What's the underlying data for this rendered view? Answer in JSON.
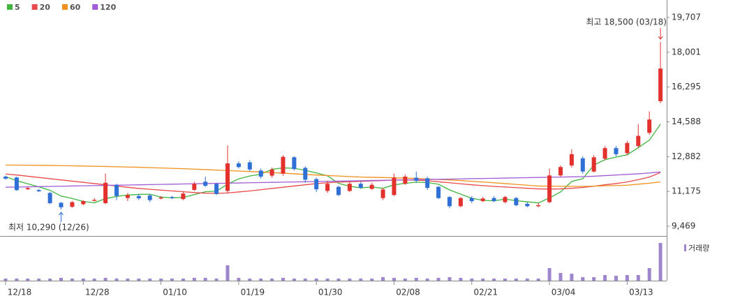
{
  "chart_data": {
    "type": "candlestick",
    "categories": [
      "12/18",
      null,
      null,
      null,
      null,
      null,
      null,
      "12/28",
      null,
      null,
      null,
      null,
      null,
      null,
      "01/10",
      null,
      null,
      null,
      null,
      null,
      null,
      "01/19",
      null,
      null,
      null,
      null,
      null,
      null,
      "01/30",
      null,
      null,
      null,
      null,
      null,
      null,
      "02/08",
      null,
      null,
      null,
      null,
      null,
      null,
      "02/21",
      null,
      null,
      null,
      null,
      null,
      null,
      "03/04",
      null,
      null,
      null,
      null,
      null,
      null,
      "03/13",
      null,
      null,
      null
    ],
    "open": [
      11900,
      11860,
      11280,
      11240,
      11100,
      10620,
      10420,
      10550,
      10720,
      10600,
      11500,
      10850,
      10950,
      10980,
      10830,
      10900,
      10800,
      11250,
      11650,
      11550,
      11200,
      12550,
      12600,
      12200,
      11950,
      12050,
      12850,
      12330,
      11780,
      11200,
      11400,
      11200,
      11550,
      11300,
      10850,
      11000,
      11550,
      11850,
      11820,
      11400,
      10900,
      10450,
      10850,
      10700,
      10850,
      10650,
      10850,
      10570,
      10450,
      10650,
      11960,
      12450,
      12800,
      12150,
      12780,
      13300,
      13050,
      13400,
      14050,
      15600
    ],
    "high": [
      11950,
      11900,
      11400,
      11300,
      11150,
      10650,
      10700,
      10750,
      10850,
      12050,
      11550,
      11100,
      11050,
      11050,
      10950,
      10950,
      11150,
      11650,
      11900,
      11600,
      13430,
      12650,
      12700,
      12300,
      12350,
      12950,
      12900,
      12400,
      11850,
      11700,
      11450,
      11650,
      11650,
      11600,
      11350,
      12050,
      12000,
      12150,
      11900,
      11450,
      10950,
      10900,
      10950,
      10900,
      10950,
      10950,
      10900,
      10650,
      10600,
      12300,
      12450,
      13250,
      12900,
      12950,
      13400,
      13400,
      13650,
      14470,
      15100,
      18500
    ],
    "low": [
      11750,
      11200,
      11250,
      11150,
      10550,
      10290,
      10380,
      10500,
      10700,
      10550,
      10750,
      10700,
      10750,
      10650,
      10780,
      10800,
      10750,
      11200,
      11400,
      11000,
      11100,
      12300,
      12150,
      11800,
      11850,
      11950,
      12200,
      11600,
      11150,
      11100,
      10950,
      11150,
      11300,
      11250,
      10750,
      10950,
      11500,
      11600,
      11250,
      10800,
      10350,
      10400,
      10600,
      10650,
      10650,
      10600,
      10450,
      10400,
      10400,
      10600,
      11900,
      12350,
      12050,
      12100,
      12700,
      12900,
      12950,
      13300,
      13950,
      15500
    ],
    "close": [
      11800,
      11240,
      11340,
      11180,
      10600,
      10400,
      10650,
      10700,
      10760,
      11600,
      10950,
      11000,
      10840,
      10750,
      10880,
      10850,
      11070,
      11550,
      11450,
      11050,
      12550,
      12370,
      12250,
      11900,
      12250,
      12870,
      12270,
      11750,
      11280,
      11550,
      11000,
      11550,
      11350,
      11500,
      11270,
      11850,
      11900,
      11700,
      11350,
      10850,
      10450,
      10850,
      10700,
      10830,
      10700,
      10900,
      10500,
      10450,
      10500,
      11960,
      12370,
      13000,
      12150,
      12850,
      13300,
      13000,
      13550,
      13900,
      14700,
      17200
    ],
    "up_color": "#e3312d",
    "down_color": "#2f6fd6",
    "series": [
      {
        "name": "5",
        "color": "#3fb53f",
        "values": [
          11900,
          11700,
          11550,
          11400,
          11230,
          10950,
          10830,
          10680,
          10620,
          10820,
          10930,
          11000,
          11030,
          11040,
          10900,
          10860,
          10880,
          11020,
          11160,
          11190,
          11530,
          11790,
          11930,
          12020,
          12260,
          12330,
          12310,
          12210,
          12080,
          11940,
          11570,
          11430,
          11350,
          11390,
          11330,
          11500,
          11570,
          11630,
          11610,
          11530,
          11250,
          11040,
          10840,
          10740,
          10710,
          10800,
          10720,
          10670,
          10610,
          10860,
          11150,
          11660,
          11800,
          12470,
          12730,
          12860,
          12970,
          13320,
          13690,
          14470
        ]
      },
      {
        "name": "20",
        "color": "#e84a4a",
        "values": [
          12030,
          11980,
          11920,
          11860,
          11800,
          11740,
          11680,
          11620,
          11560,
          11500,
          11440,
          11380,
          11320,
          11280,
          11240,
          11200,
          11160,
          11120,
          11090,
          11080,
          11100,
          11150,
          11200,
          11260,
          11320,
          11380,
          11440,
          11500,
          11560,
          11600,
          11630,
          11650,
          11670,
          11690,
          11710,
          11730,
          11740,
          11730,
          11700,
          11650,
          11600,
          11550,
          11500,
          11460,
          11420,
          11390,
          11360,
          11330,
          11300,
          11290,
          11300,
          11330,
          11370,
          11430,
          11500,
          11560,
          11640,
          11750,
          11880,
          12100
        ]
      },
      {
        "name": "60",
        "color": "#f0901e",
        "values": [
          12470,
          12465,
          12460,
          12455,
          12450,
          12440,
          12430,
          12420,
          12410,
          12398,
          12385,
          12372,
          12360,
          12342,
          12325,
          12308,
          12290,
          12268,
          12245,
          12222,
          12200,
          12175,
          12150,
          12125,
          12100,
          12070,
          12040,
          12010,
          11980,
          11955,
          11930,
          11905,
          11880,
          11868,
          11855,
          11842,
          11830,
          11808,
          11785,
          11762,
          11740,
          11705,
          11670,
          11635,
          11600,
          11560,
          11520,
          11480,
          11440,
          11435,
          11430,
          11425,
          11420,
          11435,
          11450,
          11465,
          11480,
          11530,
          11580,
          11640
        ]
      },
      {
        "name": "120",
        "color": "#a05cd6",
        "values": [
          11380,
          11390,
          11400,
          11410,
          11420,
          11430,
          11440,
          11450,
          11460,
          11470,
          11480,
          11490,
          11500,
          11510,
          11520,
          11530,
          11540,
          11550,
          11560,
          11570,
          11580,
          11590,
          11600,
          11610,
          11620,
          11630,
          11640,
          11650,
          11660,
          11670,
          11680,
          11690,
          11700,
          11710,
          11720,
          11730,
          11740,
          11750,
          11760,
          11770,
          11780,
          11790,
          11800,
          11810,
          11820,
          11830,
          11840,
          11850,
          11860,
          11870,
          11880,
          11890,
          11900,
          11920,
          11950,
          11980,
          12010,
          12040,
          12080,
          12130
        ]
      }
    ],
    "volume": {
      "name": "거래량",
      "color": "#9d86cc",
      "values": [
        3,
        3,
        3,
        3,
        3,
        4,
        3,
        3,
        3,
        4,
        3,
        3,
        3,
        3,
        3,
        3,
        3,
        4,
        4,
        3,
        22,
        4,
        3,
        3,
        3,
        4,
        3,
        3,
        3,
        3,
        3,
        3,
        3,
        3,
        5,
        4,
        3,
        4,
        3,
        4,
        5,
        4,
        3,
        3,
        3,
        3,
        3,
        3,
        3,
        18,
        11,
        10,
        5,
        5,
        8,
        7,
        8,
        8,
        18,
        54
      ]
    },
    "ylim": [
      8991,
      20560
    ],
    "yticks": [
      {
        "value": 9469,
        "label": "9,469"
      },
      {
        "value": 11175,
        "label": "11,175"
      },
      {
        "value": 12882,
        "label": "12,882"
      },
      {
        "value": 14588,
        "label": "14,588"
      },
      {
        "value": 16295,
        "label": "16,295"
      },
      {
        "value": 18001,
        "label": "18,001"
      },
      {
        "value": 19707,
        "label": "19,707"
      }
    ],
    "annotations": [
      {
        "text": "최고 18,500 (03/18)",
        "color": "#e3312d"
      },
      {
        "text": "최저 10,290 (12/26)",
        "color": "#2f6fd6"
      }
    ]
  }
}
